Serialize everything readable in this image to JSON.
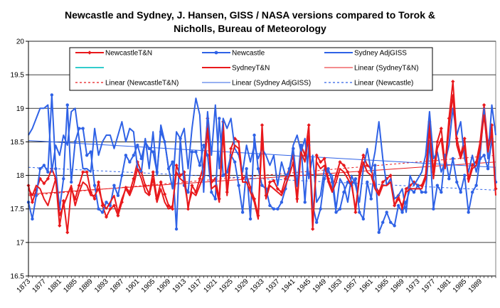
{
  "chart_data": {
    "type": "line",
    "title": "Newcastle and Sydney, J. Hansen,  GISS / NASA  versions compared to Torok &",
    "subtitle": "Nicholls, Bureau of Meteorology",
    "xlim": [
      1873,
      1993
    ],
    "ylim": [
      16.5,
      20
    ],
    "yticks": [
      16.5,
      17,
      17.5,
      18,
      18.5,
      19,
      19.5,
      20
    ],
    "ytick_labels": [
      "16.5",
      "17",
      "17.5",
      "18",
      "18.5",
      "19",
      "19.5",
      "20"
    ],
    "xticks": [
      "1873",
      "1877",
      "1881",
      "1885",
      "1889",
      "1893",
      "1897",
      "1901",
      "1905",
      "1909",
      "1913",
      "1917",
      "1921",
      "1925",
      "1929",
      "1933",
      "1937",
      "1941",
      "1945",
      "1949",
      "1953",
      "1957",
      "1961",
      "1965",
      "1969",
      "1973",
      "1977",
      "1981",
      "1985",
      "1989"
    ],
    "grid": "horizontal",
    "legend_position": "top",
    "series": [
      {
        "name": "NewcastleT&N",
        "color": "#e8191c",
        "marker": "diamond",
        "dash": "solid",
        "x_start": 1873,
        "values": [
          17.85,
          17.6,
          17.78,
          17.95,
          17.88,
          17.95,
          18.1,
          17.95,
          17.25,
          17.62,
          17.15,
          17.8,
          17.65,
          17.85,
          18.05,
          18.05,
          17.75,
          17.65,
          17.9,
          17.55,
          17.38,
          17.5,
          17.55,
          17.4,
          17.6,
          17.82,
          17.75,
          17.95,
          18.2,
          18.05,
          17.85,
          17.72,
          18.05,
          17.65,
          17.9,
          17.72,
          17.55,
          17.5,
          18.15,
          18.0,
          18.05,
          17.5,
          17.85,
          17.75,
          17.95,
          18.15,
          18.85,
          17.9,
          17.95,
          17.65,
          18.8,
          17.75,
          18.4,
          18.55,
          18.5,
          17.95,
          18.0,
          17.82,
          17.65,
          17.4,
          18.75,
          17.7,
          17.9,
          17.92,
          17.8,
          17.75,
          17.95,
          18.1,
          18.3,
          17.65,
          18.45,
          18.3,
          18.75,
          17.2,
          18.3,
          18.2,
          18.25,
          17.95,
          17.8,
          18.0,
          18.2,
          18.15,
          18.05,
          17.9,
          17.45,
          18.05,
          18.3,
          18.15,
          18.1,
          17.85,
          17.75,
          17.9,
          17.95,
          18.0,
          17.55,
          17.7,
          17.5,
          17.8,
          17.85,
          17.9,
          17.85,
          17.85,
          18.0,
          18.8,
          18.05,
          18.5,
          18.7,
          18.15,
          18.85,
          19.4,
          18.55,
          18.3,
          18.55,
          17.95,
          18.15,
          18.2,
          18.5,
          19.05,
          18.45,
          18.75,
          17.8
        ]
      },
      {
        "name": "Newcastle",
        "color": "#2f62e6",
        "marker": "circle",
        "dash": "solid",
        "x_start": 1873,
        "values": [
          17.6,
          17.35,
          17.7,
          18.1,
          18.15,
          18.05,
          19.2,
          18.1,
          17.5,
          17.95,
          19.05,
          17.9,
          18.5,
          18.7,
          18.7,
          18.3,
          18.35,
          17.85,
          17.5,
          17.45,
          17.6,
          17.55,
          17.85,
          17.7,
          18.0,
          18.3,
          18.2,
          18.3,
          18.45,
          18.25,
          18.5,
          18.4,
          18.35,
          18.05,
          18.65,
          18.5,
          18.1,
          18.2,
          17.2,
          18.55,
          17.85,
          17.75,
          18.35,
          18.35,
          18.15,
          18.45,
          18.3,
          17.75,
          17.65,
          18.85,
          18.0,
          18.05,
          18.3,
          18.2,
          17.85,
          17.45,
          18.1,
          17.35,
          18.6,
          18.1,
          17.85,
          17.8,
          17.55,
          17.5,
          17.5,
          17.6,
          17.8,
          18.1,
          18.4,
          17.85,
          18.45,
          17.6,
          18.45,
          17.55,
          17.3,
          17.5,
          17.95,
          18.1,
          17.9,
          17.45,
          17.5,
          17.75,
          17.9,
          17.85,
          17.95,
          17.45,
          17.35,
          17.9,
          17.65,
          18.15,
          17.15,
          17.3,
          17.45,
          17.3,
          17.25,
          17.55,
          17.45,
          17.6,
          17.8,
          17.75,
          17.85,
          17.75,
          17.75,
          18.5,
          17.5,
          17.85,
          17.75,
          18.3,
          17.95,
          18.25,
          17.9,
          17.75,
          18.0,
          17.45,
          17.75,
          17.85,
          18.25,
          18.3,
          18.1,
          18.55,
          17.9
        ]
      },
      {
        "name": "Sydney AdjGISS",
        "color": "#2f62e6",
        "marker": "none",
        "dash": "solid",
        "x_start": 1873,
        "values": [
          18.6,
          18.7,
          18.85,
          19.0,
          19.0,
          19.05,
          18.05,
          18.45,
          18.3,
          18.6,
          18.45,
          18.95,
          19.0,
          18.55,
          18.1,
          18.1,
          18.05,
          18.7,
          18.3,
          18.5,
          18.6,
          18.6,
          18.4,
          18.6,
          18.8,
          18.5,
          18.7,
          18.65,
          18.1,
          18.05,
          18.55,
          18.1,
          18.65,
          18.0,
          18.75,
          18.5,
          18.1,
          17.8,
          18.65,
          18.55,
          18.7,
          18.1,
          18.7,
          19.15,
          18.9,
          17.75,
          18.95,
          18.3,
          19.05,
          18.1,
          18.85,
          18.7,
          18.85,
          18.4,
          18.3,
          18.05,
          18.45,
          18.2,
          18.45,
          18.25,
          18.4,
          18.3,
          18.15,
          18.3,
          17.85,
          18.2,
          18.0,
          18.05,
          18.45,
          18.6,
          18.35,
          18.55,
          17.95,
          18.3,
          17.6,
          17.7,
          18.1,
          18.05,
          18.0,
          17.5,
          17.95,
          17.85,
          17.6,
          18.0,
          17.85,
          17.6,
          18.1,
          18.4,
          18.05,
          18.35,
          18.8,
          18.25,
          17.85,
          17.95,
          17.65,
          17.7,
          17.8,
          17.45,
          18.0,
          17.85,
          17.95,
          18.05,
          18.3,
          18.95,
          18.25,
          18.35,
          18.05,
          18.2,
          18.45,
          19.0,
          18.6,
          18.8,
          18.25,
          18.05,
          18.3,
          18.05,
          18.3,
          19.0,
          18.25,
          19.05,
          18.6
        ]
      },
      {
        "name": "SydneyT&N",
        "color": "#e8191c",
        "marker": "none",
        "dash": "solid",
        "x_start": 1873,
        "values": [
          17.8,
          17.7,
          17.85,
          17.8,
          17.65,
          17.55,
          17.75,
          17.95,
          17.4,
          17.55,
          17.7,
          17.85,
          17.55,
          17.75,
          17.9,
          17.85,
          17.7,
          17.7,
          17.8,
          17.6,
          17.5,
          17.6,
          17.7,
          17.45,
          17.65,
          17.8,
          17.7,
          17.85,
          18.1,
          17.95,
          17.75,
          17.7,
          17.95,
          17.6,
          17.8,
          17.6,
          17.5,
          17.55,
          18.05,
          17.95,
          17.9,
          17.55,
          17.75,
          17.7,
          17.85,
          18.0,
          18.7,
          17.8,
          17.85,
          17.6,
          18.65,
          17.7,
          18.25,
          18.45,
          18.4,
          17.9,
          17.9,
          17.75,
          17.6,
          17.35,
          18.6,
          17.65,
          17.85,
          17.8,
          17.75,
          17.7,
          17.85,
          18.0,
          18.2,
          17.6,
          18.35,
          18.2,
          18.6,
          17.25,
          18.2,
          18.1,
          18.15,
          17.9,
          17.75,
          17.9,
          18.1,
          18.05,
          17.95,
          17.85,
          17.5,
          17.95,
          18.2,
          18.05,
          18.0,
          17.8,
          17.7,
          17.85,
          17.85,
          17.9,
          17.55,
          17.65,
          17.55,
          17.75,
          17.8,
          17.8,
          17.8,
          17.8,
          17.95,
          18.7,
          17.95,
          18.4,
          18.55,
          18.1,
          18.7,
          19.2,
          18.45,
          18.25,
          18.45,
          17.9,
          18.1,
          18.15,
          18.4,
          18.9,
          18.35,
          18.65,
          17.7
        ]
      },
      {
        "name": "Linear (SydneyT&N)",
        "color": "#e8191c",
        "marker": "none",
        "dash": "solid",
        "trend": true,
        "x": [
          1873,
          1993
        ],
        "values": [
          17.72,
          18.2
        ]
      },
      {
        "name": "Linear (NewcastleT&N)",
        "color": "#e8191c",
        "marker": "none",
        "dash": "dotted",
        "trend": true,
        "x": [
          1873,
          1993
        ],
        "values": [
          17.7,
          18.3
        ]
      },
      {
        "name": "Linear (Sydney AdjGISS)",
        "color": "#2f62e6",
        "marker": "none",
        "dash": "solid",
        "trend": true,
        "x": [
          1873,
          1993
        ],
        "values": [
          18.52,
          18.12
        ]
      },
      {
        "name": "Linear (Newcastle)",
        "color": "#2f62e6",
        "marker": "none",
        "dash": "dotted",
        "trend": true,
        "x": [
          1873,
          1993
        ],
        "values": [
          18.12,
          17.78
        ]
      }
    ],
    "legend": [
      {
        "label": "NewcastleT&N",
        "color": "#e8191c",
        "marker": "diamond",
        "dash": "solid"
      },
      {
        "label": "Newcastle",
        "color": "#2f62e6",
        "marker": "circle",
        "dash": "solid"
      },
      {
        "label": "Sydney AdjGISS",
        "color": "#2f62e6",
        "marker": "none",
        "dash": "solid"
      },
      {
        "label": "",
        "color": "#33cccc",
        "marker": "none",
        "dash": "solid"
      },
      {
        "label": "SydneyT&N",
        "color": "#e8191c",
        "marker": "none",
        "dash": "solid"
      },
      {
        "label": "Linear (SydneyT&N)",
        "color": "#e8191c",
        "marker": "none",
        "dash": "solid"
      },
      {
        "label": "Linear (NewcastleT&N)",
        "color": "#e8191c",
        "marker": "none",
        "dash": "dotted"
      },
      {
        "label": "Linear (Sydney AdjGISS)",
        "color": "#2f62e6",
        "marker": "none",
        "dash": "solid"
      },
      {
        "label": "Linear (Newcastle)",
        "color": "#2f62e6",
        "marker": "none",
        "dash": "dotted"
      }
    ]
  }
}
